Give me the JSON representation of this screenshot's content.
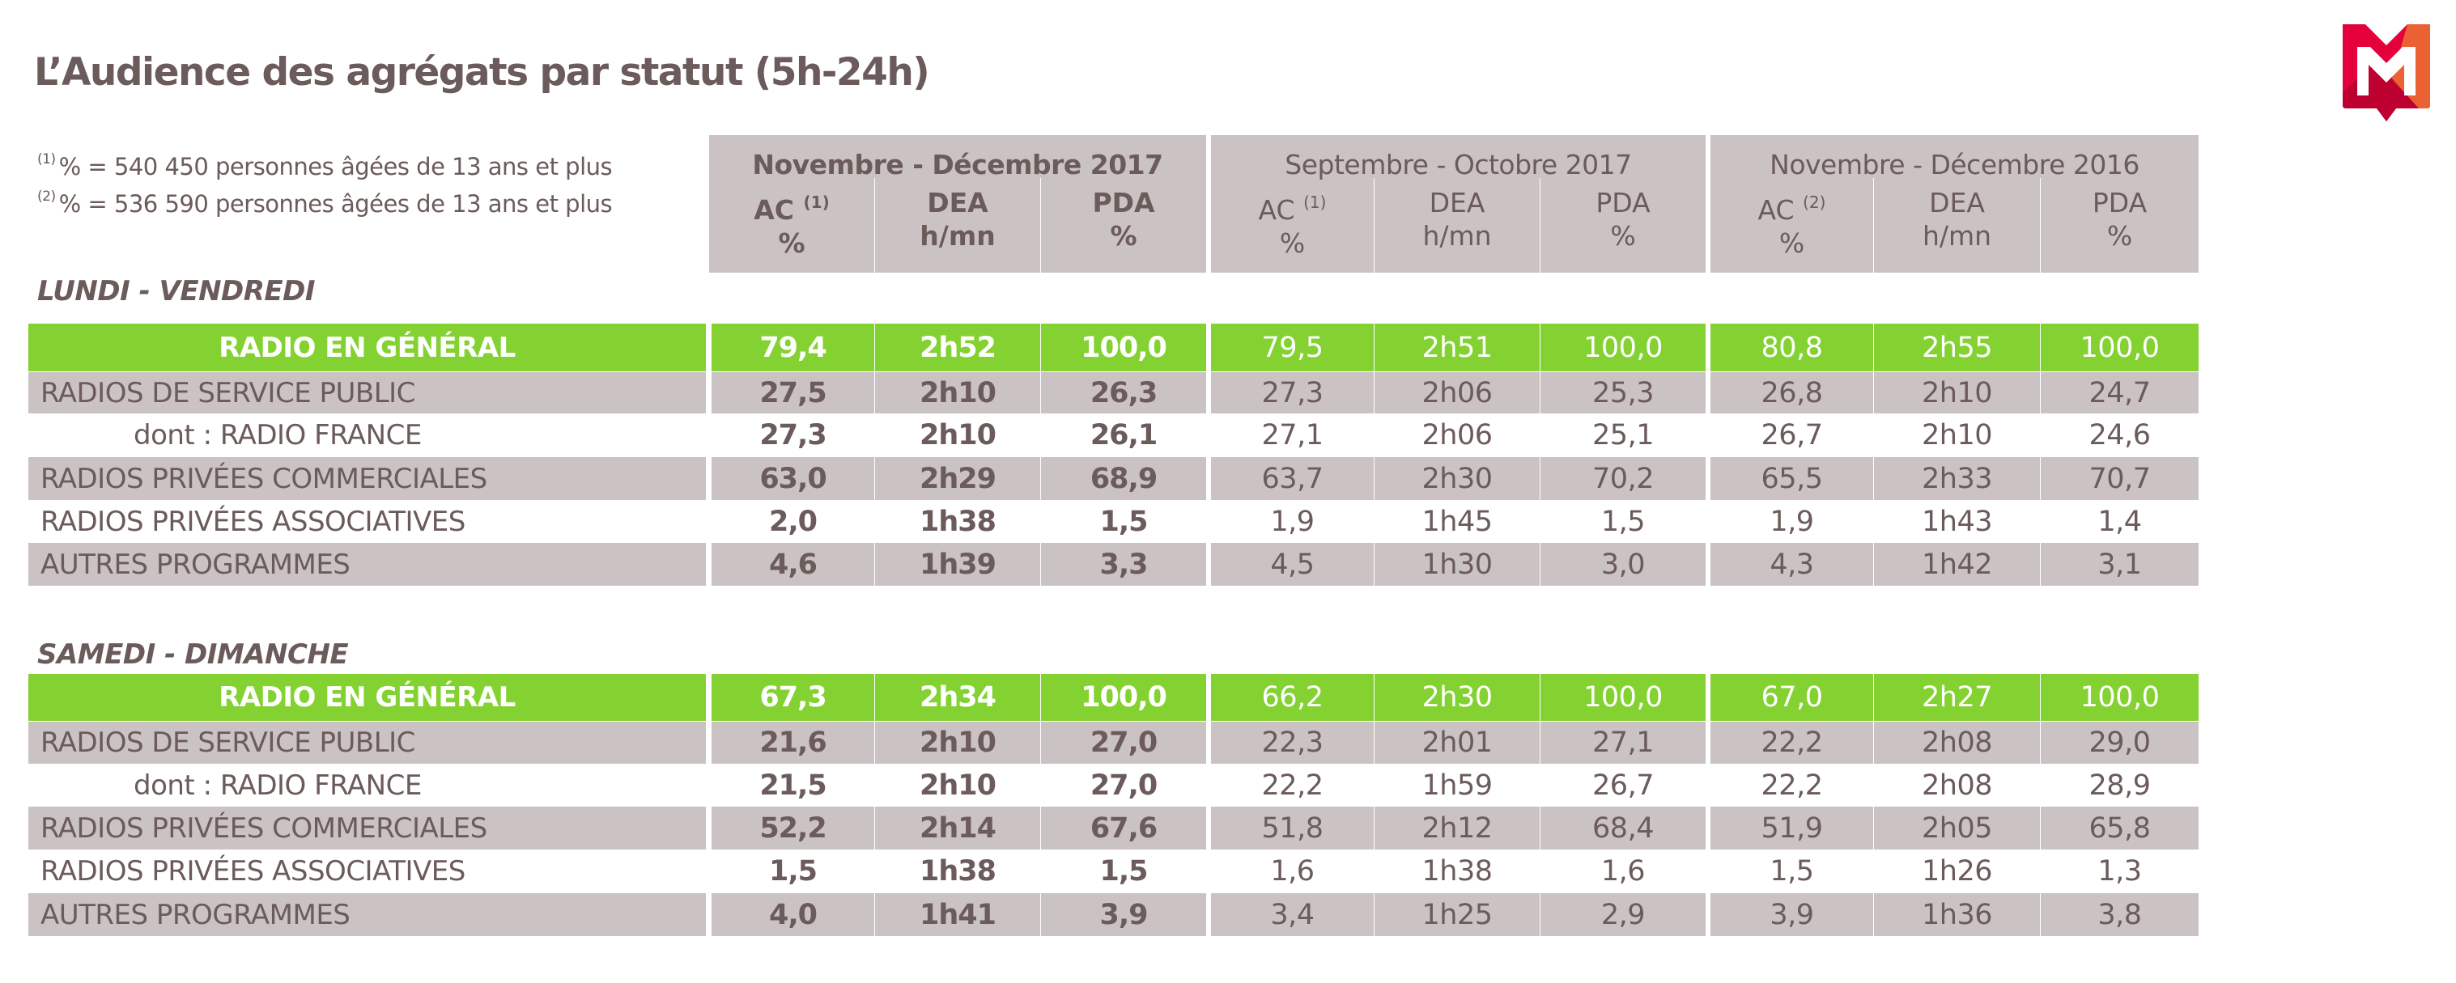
{
  "title": "L’Audience des agrégats par statut (5h-24h)",
  "footnotes": [
    {
      "mark": "(1)",
      "text": "% = 540 450 personnes âgées de 13 ans et plus"
    },
    {
      "mark": "(2)",
      "text": "% = 536 590 personnes âgées de 13 ans et plus"
    }
  ],
  "logo": {
    "letter": "M",
    "colors": {
      "red": "#e4003a",
      "dark_red": "#b8002f",
      "orange": "#ea6133"
    }
  },
  "colors": {
    "text": "#6b5b5a",
    "grey_cell": "#cbc3c3",
    "green_row": "#84d232"
  },
  "periods": [
    {
      "label": "Novembre - Décembre 2017",
      "columns": [
        {
          "name": "AC",
          "sup": "(1)",
          "unit": "%"
        },
        {
          "name": "DEA",
          "sup": "",
          "unit": "h/mn"
        },
        {
          "name": "PDA",
          "sup": "",
          "unit": "%"
        }
      ]
    },
    {
      "label": "Septembre - Octobre 2017",
      "columns": [
        {
          "name": "AC",
          "sup": "(1)",
          "unit": "%"
        },
        {
          "name": "DEA",
          "sup": "",
          "unit": "h/mn"
        },
        {
          "name": "PDA",
          "sup": "",
          "unit": "%"
        }
      ]
    },
    {
      "label": "Novembre - Décembre 2016",
      "columns": [
        {
          "name": "AC",
          "sup": "(2)",
          "unit": "%"
        },
        {
          "name": "DEA",
          "sup": "",
          "unit": "h/mn"
        },
        {
          "name": "PDA",
          "sup": "",
          "unit": "%"
        }
      ]
    }
  ],
  "sections": [
    {
      "label": "LUNDI - VENDREDI",
      "rows": [
        {
          "label": "RADIO EN GÉNÉRAL",
          "style": "total",
          "values": [
            "79,4",
            "2h52",
            "100,0",
            "79,5",
            "2h51",
            "100,0",
            "80,8",
            "2h55",
            "100,0"
          ]
        },
        {
          "label": "RADIOS DE SERVICE PUBLIC",
          "style": "grey",
          "values": [
            "27,5",
            "2h10",
            "26,3",
            "27,3",
            "2h06",
            "25,3",
            "26,8",
            "2h10",
            "24,7"
          ]
        },
        {
          "label": "dont : RADIO FRANCE",
          "style": "indent",
          "values": [
            "27,3",
            "2h10",
            "26,1",
            "27,1",
            "2h06",
            "25,1",
            "26,7",
            "2h10",
            "24,6"
          ]
        },
        {
          "label": "RADIOS PRIVÉES COMMERCIALES",
          "style": "grey",
          "values": [
            "63,0",
            "2h29",
            "68,9",
            "63,7",
            "2h30",
            "70,2",
            "65,5",
            "2h33",
            "70,7"
          ]
        },
        {
          "label": "RADIOS PRIVÉES ASSOCIATIVES",
          "style": "white",
          "values": [
            "2,0",
            "1h38",
            "1,5",
            "1,9",
            "1h45",
            "1,5",
            "1,9",
            "1h43",
            "1,4"
          ]
        },
        {
          "label": "AUTRES PROGRAMMES",
          "style": "grey",
          "values": [
            "4,6",
            "1h39",
            "3,3",
            "4,5",
            "1h30",
            "3,0",
            "4,3",
            "1h42",
            "3,1"
          ]
        }
      ]
    },
    {
      "label": "SAMEDI - DIMANCHE",
      "rows": [
        {
          "label": "RADIO EN GÉNÉRAL",
          "style": "total",
          "values": [
            "67,3",
            "2h34",
            "100,0",
            "66,2",
            "2h30",
            "100,0",
            "67,0",
            "2h27",
            "100,0"
          ]
        },
        {
          "label": "RADIOS DE SERVICE PUBLIC",
          "style": "grey",
          "values": [
            "21,6",
            "2h10",
            "27,0",
            "22,3",
            "2h01",
            "27,1",
            "22,2",
            "2h08",
            "29,0"
          ]
        },
        {
          "label": "dont : RADIO FRANCE",
          "style": "indent",
          "values": [
            "21,5",
            "2h10",
            "27,0",
            "22,2",
            "1h59",
            "26,7",
            "22,2",
            "2h08",
            "28,9"
          ]
        },
        {
          "label": "RADIOS PRIVÉES COMMERCIALES",
          "style": "grey",
          "values": [
            "52,2",
            "2h14",
            "67,6",
            "51,8",
            "2h12",
            "68,4",
            "51,9",
            "2h05",
            "65,8"
          ]
        },
        {
          "label": "RADIOS PRIVÉES ASSOCIATIVES",
          "style": "white",
          "values": [
            "1,5",
            "1h38",
            "1,5",
            "1,6",
            "1h38",
            "1,6",
            "1,5",
            "1h26",
            "1,3"
          ]
        },
        {
          "label": "AUTRES PROGRAMMES",
          "style": "grey",
          "values": [
            "4,0",
            "1h41",
            "3,9",
            "3,4",
            "1h25",
            "2,9",
            "3,9",
            "1h36",
            "3,8"
          ]
        }
      ]
    }
  ]
}
